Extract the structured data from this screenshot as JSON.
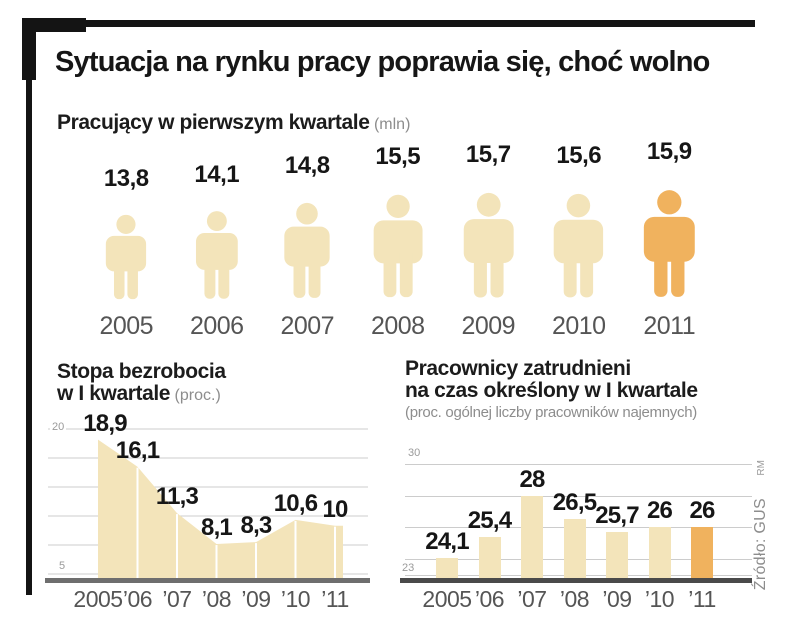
{
  "title": "Sytuacja na rynku pracy poprawia się, choć wolno",
  "source": {
    "rm": "RM",
    "credit": "Źródło: GUS"
  },
  "colors": {
    "cream": "#f3e4ba",
    "orange": "#f0b25e",
    "grid": "#cccccc",
    "baseline_left": "#6e6e6e",
    "baseline_right": "#4a4a4a",
    "title_text": "#161616",
    "muted_text": "#8d8d8d",
    "axis_text": "#555555"
  },
  "chart_data": [
    {
      "id": "employed",
      "type": "pictogram",
      "title": "Pracujący w pierwszym kwartale",
      "unit": "(mln)",
      "categories": [
        "2005",
        "2006",
        "2007",
        "2008",
        "2009",
        "2010",
        "2011"
      ],
      "values": [
        13.8,
        14.1,
        14.8,
        15.5,
        15.7,
        15.6,
        15.9
      ],
      "labels": [
        "13,8",
        "14,1",
        "14,8",
        "15,5",
        "15,7",
        "15,6",
        "15,9"
      ],
      "highlight_index": 6
    },
    {
      "id": "unemployment-rate",
      "type": "area",
      "title_line1": "Stopa bezrobocia",
      "title_line2": "w I kwartale",
      "unit": "(proc.)",
      "categories": [
        "2005",
        "’06",
        "’07",
        "’08",
        "’09",
        "’10",
        "’11"
      ],
      "values": [
        18.9,
        16.1,
        11.3,
        8.1,
        8.3,
        10.6,
        10
      ],
      "labels": [
        "18,9",
        "16,1",
        "11,3",
        "8,1",
        "8,3",
        "10,6",
        "10"
      ],
      "ylim": [
        5,
        20
      ],
      "gridline_values": [
        20,
        17,
        14,
        11,
        8,
        5
      ],
      "ytick_labels": [
        "20",
        "5"
      ],
      "grid": true,
      "legend": "none"
    },
    {
      "id": "temporary-workers",
      "type": "bar",
      "title_line1": "Pracownicy zatrudnieni",
      "title_line2": "na czas określony w I kwartale",
      "unit": "(proc. ogólnej liczby pracowników najemnych)",
      "categories": [
        "2005",
        "’06",
        "’07",
        "’08",
        "’09",
        "’10",
        "’11"
      ],
      "values": [
        24.1,
        25.4,
        28,
        26.5,
        25.7,
        26,
        26
      ],
      "labels": [
        "24,1",
        "25,4",
        "28",
        "26,5",
        "25,7",
        "26",
        "26"
      ],
      "ylim": [
        23,
        30
      ],
      "gridline_values": [
        30,
        28,
        26,
        24,
        23
      ],
      "ytick_labels": [
        "30",
        "23"
      ],
      "highlight_index": 6,
      "grid": true,
      "legend": "none"
    }
  ]
}
